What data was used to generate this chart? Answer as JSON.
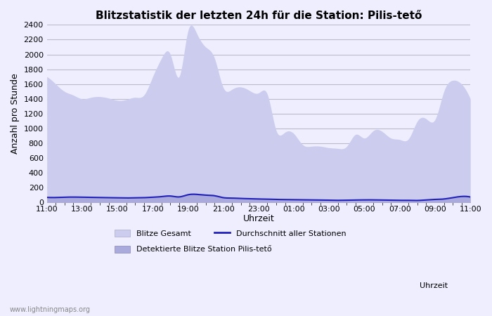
{
  "title": "Blitzstatistik der letzten 24h für die Station: Pilis-tető",
  "ylabel": "Anzahl pro Stunde",
  "xlabel": "Uhrzeit",
  "watermark": "www.lightningmaps.org",
  "legend_blitze_gesamt": "Blitze Gesamt",
  "legend_durchschnitt": "Durchschnitt aller Stationen",
  "legend_detektierte": "Detektierte Blitze Station Pilis-tető",
  "ylim": [
    0,
    2400
  ],
  "yticks": [
    0,
    200,
    400,
    600,
    800,
    1000,
    1200,
    1400,
    1600,
    1800,
    2000,
    2200,
    2400
  ],
  "x_labels": [
    "11:00",
    "13:00",
    "15:00",
    "17:00",
    "19:00",
    "21:00",
    "23:00",
    "01:00",
    "03:00",
    "05:00",
    "07:00",
    "09:00",
    "11:00"
  ],
  "bg_color": "#eeeeff",
  "fill_gesamt_color": "#ccccee",
  "fill_detektierte_color": "#aaaadd",
  "avg_line_color": "#2222bb",
  "grid_color": "#bbbbcc",
  "title_fontsize": 11,
  "axis_fontsize": 9,
  "tick_fontsize": 8,
  "x_data": [
    0,
    1,
    2,
    3,
    4,
    5,
    6,
    7,
    8,
    9,
    10,
    11,
    12,
    13,
    14,
    15,
    16,
    17,
    18,
    19,
    20,
    21,
    22,
    23,
    24,
    25,
    26,
    27,
    28,
    29,
    30,
    31,
    32,
    33,
    34,
    35,
    36,
    37,
    38,
    39,
    40,
    41,
    42,
    43,
    44,
    45,
    46,
    47,
    48
  ],
  "gesamt": [
    1700,
    1600,
    1500,
    1450,
    1400,
    1420,
    1430,
    1410,
    1380,
    1390,
    1420,
    1450,
    1700,
    1950,
    2000,
    1700,
    2320,
    2280,
    2100,
    1950,
    1550,
    1530,
    1560,
    1510,
    1480,
    1460,
    970,
    950,
    930,
    780,
    760,
    760,
    740,
    730,
    760,
    920,
    870,
    970,
    960,
    870,
    850,
    860,
    1100,
    1130,
    1120,
    1500,
    1650,
    1600,
    1400
  ],
  "detektierte": [
    75,
    72,
    80,
    82,
    78,
    75,
    72,
    70,
    68,
    65,
    68,
    70,
    78,
    90,
    100,
    88,
    120,
    125,
    115,
    105,
    75,
    68,
    62,
    60,
    55,
    52,
    48,
    46,
    44,
    42,
    40,
    40,
    38,
    38,
    40,
    42,
    44,
    44,
    42,
    40,
    38,
    38,
    36,
    42,
    48,
    55,
    75,
    95,
    88
  ],
  "avg_line": [
    70,
    68,
    72,
    74,
    72,
    70,
    68,
    66,
    64,
    62,
    64,
    66,
    72,
    80,
    88,
    76,
    105,
    110,
    100,
    92,
    66,
    60,
    55,
    52,
    48,
    46,
    42,
    40,
    38,
    36,
    34,
    34,
    32,
    30,
    32,
    34,
    36,
    36,
    34,
    32,
    30,
    30,
    28,
    36,
    42,
    48,
    66,
    82,
    75
  ]
}
